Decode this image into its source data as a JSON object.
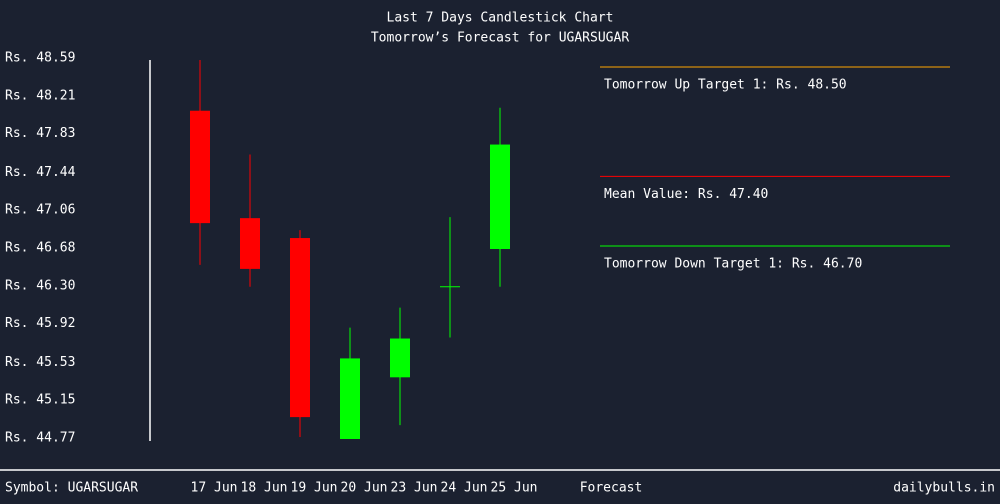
{
  "chart_data": {
    "type": "candlestick",
    "title": "Last 7 Days Candlestick Chart",
    "subtitle": "Tomorrow’s Forecast for UGARSUGAR",
    "categories": [
      "17 Jun",
      "18 Jun",
      "19 Jun",
      "20 Jun",
      "23 Jun",
      "24 Jun",
      "25 Jun"
    ],
    "open": [
      48.06,
      46.98,
      46.78,
      44.76,
      45.38,
      46.29,
      46.67
    ],
    "close": [
      46.93,
      46.47,
      44.98,
      45.57,
      45.77,
      46.29,
      47.72
    ],
    "high": [
      48.57,
      47.62,
      46.86,
      45.88,
      46.08,
      46.99,
      48.09
    ],
    "low": [
      46.51,
      46.29,
      44.78,
      44.76,
      44.9,
      45.78,
      46.29
    ],
    "up_color": "#00ff00",
    "down_color": "#ff0000",
    "ylim": [
      44.77,
      48.59
    ],
    "yticks": [
      {
        "value": 48.59,
        "label": "Rs. 48.59"
      },
      {
        "value": 48.21,
        "label": "Rs. 48.21"
      },
      {
        "value": 47.83,
        "label": "Rs. 47.83"
      },
      {
        "value": 47.44,
        "label": "Rs. 47.44"
      },
      {
        "value": 47.06,
        "label": "Rs. 47.06"
      },
      {
        "value": 46.68,
        "label": "Rs. 46.68"
      },
      {
        "value": 46.3,
        "label": "Rs. 46.30"
      },
      {
        "value": 45.92,
        "label": "Rs. 45.92"
      },
      {
        "value": 45.53,
        "label": "Rs. 45.53"
      },
      {
        "value": 45.15,
        "label": "Rs. 45.15"
      },
      {
        "value": 44.77,
        "label": "Rs. 44.77"
      }
    ],
    "forecast_label": "Forecast",
    "forecast": [
      {
        "label": "Tomorrow Up Target 1: Rs. 48.50",
        "value": 48.5,
        "color": "#ffa500"
      },
      {
        "label": "Mean Value: Rs. 47.40",
        "value": 47.4,
        "color": "#ff0000"
      },
      {
        "label": "Tomorrow Down Target 1: Rs. 46.70",
        "value": 46.7,
        "color": "#00ff00"
      }
    ],
    "symbol": "Symbol: UGARSUGAR",
    "source": "dailybulls.in"
  }
}
